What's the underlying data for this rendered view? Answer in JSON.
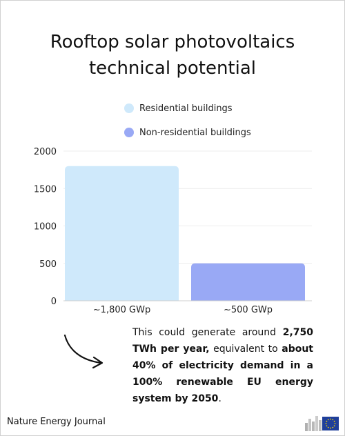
{
  "title_line1": "Rooftop solar photovoltaics",
  "title_line2": "technical potential",
  "legend": [
    {
      "label": "Residential buildings",
      "color": "#cfe9fb"
    },
    {
      "label": "Non-residential buildings",
      "color": "#99a9f5"
    }
  ],
  "chart_data": {
    "type": "bar",
    "categories": [
      "~1,800 GWp",
      "~500 GWp"
    ],
    "series": [
      {
        "name": "Residential buildings",
        "values": [
          1800,
          null
        ],
        "color": "#cfe9fb"
      },
      {
        "name": "Non-residential buildings",
        "values": [
          null,
          500
        ],
        "color": "#99a9f5"
      }
    ],
    "values": [
      1800,
      500
    ],
    "ylim": [
      0,
      2000
    ],
    "yticks": [
      0,
      500,
      1000,
      1500,
      2000
    ],
    "grid": true,
    "legend_position": "top"
  },
  "note": {
    "t1": "This could generate around ",
    "b1": "2,750 TWh per year,",
    "t2": " equivalent to ",
    "b2": "about 40% of electricity demand in a 100% renewable EU energy system by 2050",
    "t3": "."
  },
  "source": "Nature Energy Journal",
  "logo": {
    "icon": "eu-commission-logo-icon"
  }
}
